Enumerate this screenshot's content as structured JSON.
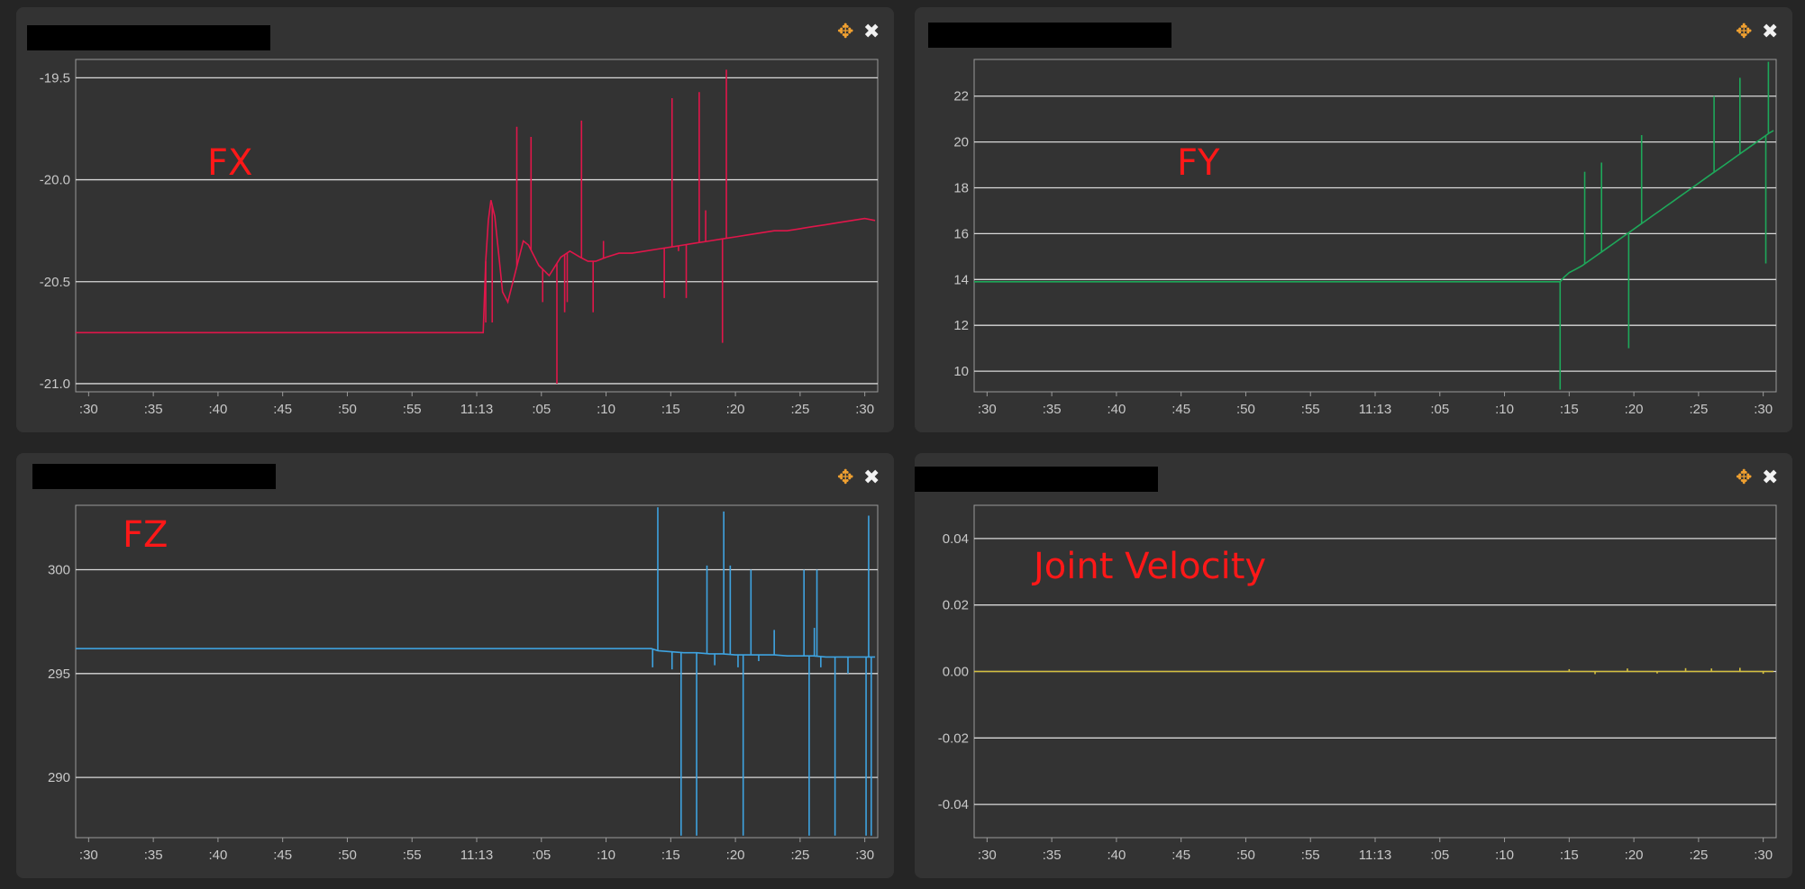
{
  "theme": {
    "background": "#252525",
    "panel": "#333333",
    "grid": "#d9d9d9",
    "tick_text": "#c8c8c8",
    "label_color": "#ff1818"
  },
  "panel_controls": {
    "move_icon": "move-icon",
    "close_icon": "close-icon",
    "move_glyph": "✥",
    "close_glyph": "✖"
  },
  "chart_data": [
    {
      "type": "line",
      "title": "",
      "label": "FX",
      "color": "#e0164a",
      "x_ticks": [
        ":30",
        ":35",
        ":40",
        ":45",
        ":50",
        ":55",
        "11:13",
        ":05",
        ":10",
        ":15",
        ":20",
        ":25",
        ":30"
      ],
      "ylim": [
        -21.04,
        -19.41
      ],
      "y_ticks": [
        -19.5,
        -20.0,
        -20.5,
        -21.0
      ],
      "y_tick_labels": [
        "-19.5",
        "-20.0",
        "-20.5",
        "-21.0"
      ],
      "grid": true,
      "series": [
        {
          "t": [
            0,
            31.5,
            31.7,
            31.9,
            32.1,
            32.4,
            33.0,
            33.4,
            34.0,
            34.6,
            35.0,
            35.8,
            36.6,
            37.5,
            38.2,
            39.0,
            39.6,
            40.2,
            41.0,
            42.0,
            43.0,
            44.0,
            45.0,
            46.0,
            47.0,
            48.0,
            49.0,
            50.0,
            51.0,
            52.0,
            53.0,
            54.0,
            55.0,
            56.0,
            57.0,
            58.0,
            59.0,
            60.0,
            61.0,
            61.8
          ],
          "y": [
            -20.75,
            -20.75,
            -20.4,
            -20.2,
            -20.1,
            -20.18,
            -20.55,
            -20.6,
            -20.45,
            -20.3,
            -20.32,
            -20.42,
            -20.47,
            -20.38,
            -20.35,
            -20.38,
            -20.4,
            -20.4,
            -20.38,
            -20.36,
            -20.36,
            -20.35,
            -20.34,
            -20.33,
            -20.32,
            -20.31,
            -20.3,
            -20.29,
            -20.28,
            -20.27,
            -20.26,
            -20.25,
            -20.25,
            -20.24,
            -20.23,
            -20.22,
            -20.21,
            -20.2,
            -20.19,
            -20.2
          ],
          "spikes": [
            {
              "t": 31.7,
              "to": -20.7
            },
            {
              "t": 32.2,
              "to": -20.7
            },
            {
              "t": 34.1,
              "to": -19.74
            },
            {
              "t": 35.2,
              "to": -19.79
            },
            {
              "t": 36.1,
              "to": -20.6
            },
            {
              "t": 37.2,
              "to": -21.0
            },
            {
              "t": 37.8,
              "to": -20.65
            },
            {
              "t": 38.0,
              "to": -20.6
            },
            {
              "t": 39.1,
              "to": -19.71
            },
            {
              "t": 40.0,
              "to": -20.65
            },
            {
              "t": 40.8,
              "to": -20.3
            },
            {
              "t": 45.5,
              "to": -20.58
            },
            {
              "t": 46.1,
              "to": -19.6
            },
            {
              "t": 46.6,
              "to": -20.35
            },
            {
              "t": 47.2,
              "to": -20.58
            },
            {
              "t": 48.2,
              "to": -19.57
            },
            {
              "t": 48.7,
              "to": -20.15
            },
            {
              "t": 50.0,
              "to": -20.8
            },
            {
              "t": 50.3,
              "to": -19.46
            }
          ]
        }
      ]
    },
    {
      "type": "line",
      "title": "",
      "label": "FY",
      "color": "#1ea85a",
      "x_ticks": [
        ":30",
        ":35",
        ":40",
        ":45",
        ":50",
        ":55",
        "11:13",
        ":05",
        ":10",
        ":15",
        ":20",
        ":25",
        ":30"
      ],
      "ylim": [
        9.1,
        23.6
      ],
      "y_ticks": [
        22,
        20,
        18,
        16,
        14,
        12,
        10
      ],
      "y_tick_labels": [
        "22",
        "20",
        "18",
        "16",
        "14",
        "12",
        "10"
      ],
      "grid": true,
      "series": [
        {
          "t": [
            0,
            45.3,
            45.6,
            46.0,
            46.5,
            47.0,
            47.5,
            48.0,
            48.5,
            49.0,
            49.5,
            50.0,
            50.5,
            51.0,
            51.5,
            52.0,
            52.5,
            53.0,
            53.5,
            54.0,
            54.5,
            55.0,
            55.5,
            56.0,
            56.5,
            57.0,
            57.5,
            58.0,
            58.5,
            59.0,
            59.5,
            60.0,
            60.5,
            61.0,
            61.5,
            61.8
          ],
          "y": [
            13.9,
            13.9,
            14.1,
            14.3,
            14.45,
            14.6,
            14.8,
            15.0,
            15.2,
            15.4,
            15.6,
            15.8,
            16.0,
            16.2,
            16.4,
            16.6,
            16.8,
            17.0,
            17.2,
            17.4,
            17.6,
            17.8,
            18.0,
            18.2,
            18.4,
            18.6,
            18.8,
            19.0,
            19.2,
            19.4,
            19.6,
            19.8,
            20.0,
            20.2,
            20.4,
            20.5
          ],
          "spikes": [
            {
              "t": 45.3,
              "to": 9.2
            },
            {
              "t": 47.2,
              "to": 18.7
            },
            {
              "t": 48.5,
              "to": 19.1
            },
            {
              "t": 50.6,
              "to": 11.0
            },
            {
              "t": 51.6,
              "to": 20.3
            },
            {
              "t": 57.2,
              "to": 22.0
            },
            {
              "t": 59.2,
              "to": 22.8
            },
            {
              "t": 61.2,
              "to": 14.7
            },
            {
              "t": 61.4,
              "to": 23.5
            }
          ]
        }
      ]
    },
    {
      "type": "line",
      "title": "",
      "label": "FZ",
      "color": "#3ea3e0",
      "x_ticks": [
        ":30",
        ":35",
        ":40",
        ":45",
        ":50",
        ":55",
        "11:13",
        ":05",
        ":10",
        ":15",
        ":20",
        ":25",
        ":30"
      ],
      "ylim": [
        287.1,
        303.1
      ],
      "y_ticks": [
        300,
        295,
        290
      ],
      "y_tick_labels": [
        "300",
        "295",
        "290"
      ],
      "grid": true,
      "series": [
        {
          "t": [
            0,
            44.5,
            45.0,
            46.0,
            47.0,
            48.0,
            49.0,
            50.0,
            51.0,
            52.0,
            53.0,
            54.0,
            55.0,
            56.0,
            57.0,
            58.0,
            59.0,
            60.0,
            61.0,
            61.8
          ],
          "y": [
            296.2,
            296.2,
            296.1,
            296.05,
            296.0,
            296.0,
            295.95,
            295.95,
            295.9,
            295.9,
            295.9,
            295.9,
            295.85,
            295.85,
            295.85,
            295.8,
            295.8,
            295.8,
            295.8,
            295.8
          ],
          "spikes": [
            {
              "t": 44.6,
              "to": 295.3
            },
            {
              "t": 45.0,
              "to": 303.0
            },
            {
              "t": 46.1,
              "to": 295.2
            },
            {
              "t": 46.8,
              "to": 287.2
            },
            {
              "t": 48.0,
              "to": 287.2
            },
            {
              "t": 48.8,
              "to": 300.2
            },
            {
              "t": 49.4,
              "to": 295.4
            },
            {
              "t": 50.1,
              "to": 302.8
            },
            {
              "t": 50.6,
              "to": 300.2
            },
            {
              "t": 51.2,
              "to": 295.3
            },
            {
              "t": 51.6,
              "to": 287.2
            },
            {
              "t": 52.2,
              "to": 300.0
            },
            {
              "t": 52.8,
              "to": 295.6
            },
            {
              "t": 54.0,
              "to": 297.1
            },
            {
              "t": 56.3,
              "to": 300.0
            },
            {
              "t": 56.7,
              "to": 287.2
            },
            {
              "t": 57.1,
              "to": 297.2
            },
            {
              "t": 57.3,
              "to": 300.0
            },
            {
              "t": 57.6,
              "to": 295.3
            },
            {
              "t": 58.7,
              "to": 287.2
            },
            {
              "t": 59.7,
              "to": 295.0
            },
            {
              "t": 61.1,
              "to": 287.2
            },
            {
              "t": 61.3,
              "to": 302.6
            },
            {
              "t": 61.5,
              "to": 287.2
            }
          ]
        }
      ]
    },
    {
      "type": "line",
      "title": "",
      "label": "Joint Velocity",
      "color": "#d4c040",
      "x_ticks": [
        ":30",
        ":35",
        ":40",
        ":45",
        ":50",
        ":55",
        "11:13",
        ":05",
        ":10",
        ":15",
        ":20",
        ":25",
        ":30"
      ],
      "ylim": [
        -0.05,
        0.05
      ],
      "y_ticks": [
        0.04,
        0.02,
        0.0,
        -0.02,
        -0.04
      ],
      "y_tick_labels": [
        "0.04",
        "0.02",
        "0.00",
        "-0.02",
        "-0.04"
      ],
      "grid": true,
      "series": [
        {
          "t": [
            0,
            61.8
          ],
          "y": [
            0.0,
            0.0
          ],
          "spikes": [
            {
              "t": 46.0,
              "to": 0.0007
            },
            {
              "t": 48.0,
              "to": -0.0008
            },
            {
              "t": 50.5,
              "to": 0.0009
            },
            {
              "t": 52.8,
              "to": -0.0006
            },
            {
              "t": 55.0,
              "to": 0.001
            },
            {
              "t": 57.0,
              "to": 0.0009
            },
            {
              "t": 59.2,
              "to": 0.0011
            },
            {
              "t": 61.0,
              "to": -0.0007
            }
          ]
        }
      ]
    }
  ]
}
